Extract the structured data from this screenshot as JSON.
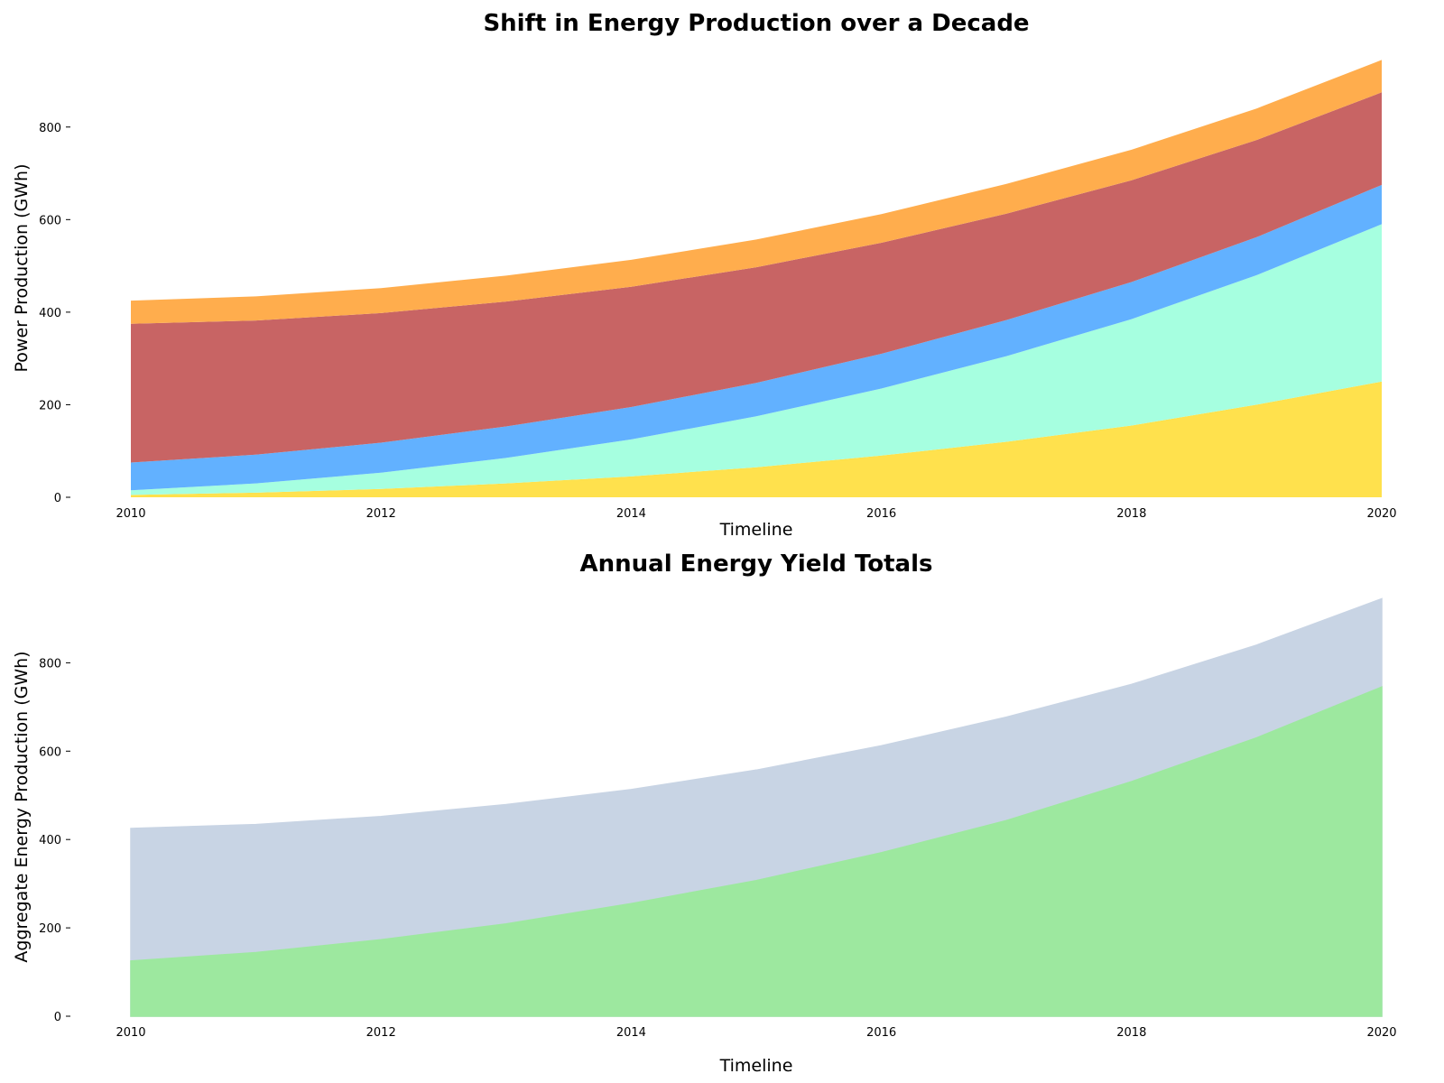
{
  "chart_data": [
    {
      "type": "area",
      "stacked": true,
      "title": "Shift in Energy Production over a Decade",
      "xlabel": "Timeline",
      "ylabel": "Power Production (GWh)",
      "x": [
        2010,
        2011,
        2012,
        2013,
        2014,
        2015,
        2016,
        2017,
        2018,
        2019,
        2020
      ],
      "xticks": [
        "2010",
        "2012",
        "2014",
        "2016",
        "2018",
        "2020"
      ],
      "yticks": [
        "0",
        "200",
        "400",
        "600",
        "800"
      ],
      "ylim": [
        0,
        950
      ],
      "xlim": [
        2010,
        2020
      ],
      "grid": false,
      "series": [
        {
          "color": "#FFE14D",
          "values": [
            5,
            10,
            18,
            30,
            45,
            65,
            90,
            120,
            155,
            200,
            250
          ]
        },
        {
          "color": "#A6FFE0",
          "values": [
            10,
            20,
            35,
            55,
            80,
            110,
            145,
            185,
            230,
            280,
            340
          ]
        },
        {
          "color": "#62B1FF",
          "values": [
            60,
            62,
            65,
            68,
            70,
            72,
            75,
            78,
            80,
            82,
            85
          ]
        },
        {
          "color": "#C86464",
          "values": [
            300,
            290,
            280,
            270,
            260,
            250,
            240,
            230,
            220,
            210,
            200
          ]
        },
        {
          "color": "#FFAD4D",
          "values": [
            50,
            52,
            54,
            56,
            58,
            60,
            62,
            64,
            66,
            68,
            70
          ]
        }
      ]
    },
    {
      "type": "area",
      "stacked": false,
      "title": "Annual Energy Yield Totals",
      "xlabel": "Timeline",
      "ylabel": "Aggregate Energy Production (GWh)",
      "x": [
        2010,
        2011,
        2012,
        2013,
        2014,
        2015,
        2016,
        2017,
        2018,
        2019,
        2020
      ],
      "xticks": [
        "2010",
        "2012",
        "2014",
        "2016",
        "2018",
        "2020"
      ],
      "yticks": [
        "0",
        "200",
        "400",
        "600",
        "800"
      ],
      "ylim": [
        0,
        950
      ],
      "xlim": [
        2010,
        2020
      ],
      "grid": false,
      "series": [
        {
          "color": "#C8D4E4",
          "values": [
            425,
            434,
            452,
            479,
            513,
            557,
            612,
            677,
            751,
            840,
            945
          ]
        },
        {
          "color": "#9DE89F",
          "values": [
            125,
            144,
            173,
            209,
            255,
            307,
            370,
            443,
            531,
            630,
            745
          ]
        }
      ]
    }
  ]
}
